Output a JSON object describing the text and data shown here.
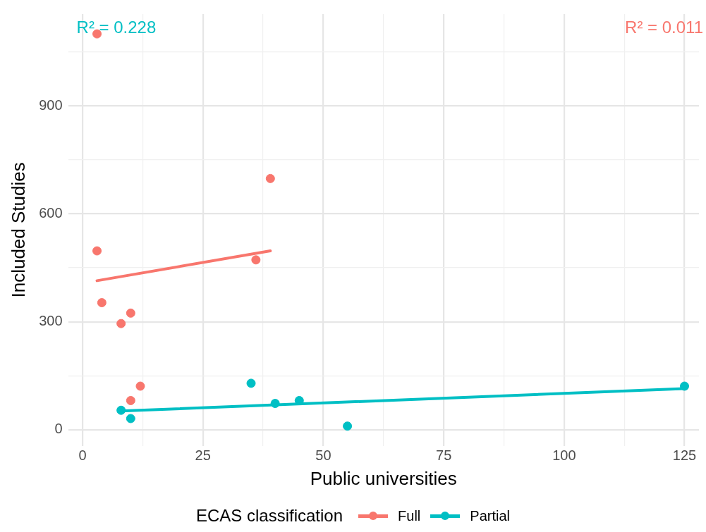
{
  "chart_data": {
    "type": "scatter",
    "xlabel": "Public universities",
    "ylabel": "Included Studies",
    "legend_title": "ECAS classification",
    "legend": "bottom",
    "grid": true,
    "marker": "circle",
    "xlim": [
      -3,
      128
    ],
    "ylim": [
      -45,
      1155
    ],
    "xticks": [
      0,
      {
        "value": 12.5,
        "label": null
      },
      25,
      {
        "value": 37.5,
        "label": null
      },
      50,
      {
        "value": 62.5,
        "label": null
      },
      75,
      {
        "value": 87.5,
        "label": null
      },
      100,
      {
        "value": 112.5,
        "label": null
      },
      125
    ],
    "yticks": [
      0,
      {
        "value": 150,
        "label": null
      },
      300,
      {
        "value": 450,
        "label": null
      },
      600,
      {
        "value": 750,
        "label": null
      },
      900,
      {
        "value": 1050,
        "label": null
      }
    ],
    "series": [
      {
        "name": "Full",
        "color": "#f8766d",
        "x": [
          3,
          3,
          4,
          8,
          10,
          39,
          36,
          12,
          10
        ],
        "values": [
          1100,
          497,
          353,
          295,
          324,
          698,
          472,
          121,
          81
        ]
      },
      {
        "name": "Partial",
        "color": "#00bfc4",
        "x": [
          8,
          10,
          35,
          40,
          45,
          55,
          125
        ],
        "values": [
          54,
          31,
          129,
          73,
          81,
          10,
          121
        ]
      },
      {
        "type": "line",
        "marker": "none",
        "color": "#f8766d",
        "x": [
          3,
          39
        ],
        "values": [
          414,
          497
        ]
      },
      {
        "type": "line",
        "marker": "none",
        "color": "#00bfc4",
        "x": [
          8,
          125
        ],
        "values": [
          52,
          114
        ]
      }
    ],
    "annotations": [
      "R² = 0.228",
      "R² = 0.011"
    ]
  }
}
